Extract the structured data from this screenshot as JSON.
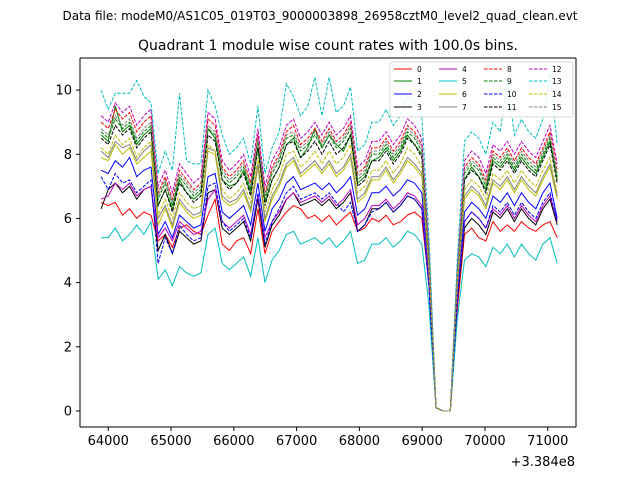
{
  "chart_data": {
    "type": "line",
    "suptitle": "Data file: modeM0/AS1C05_019T03_9000003898_26958cztM0_level2_quad_clean.evt",
    "title": "Quadrant 1 module wise count rates with 100.0s bins.",
    "xlabel": "",
    "ylabel": "",
    "x_offset_label": "+3.384e8",
    "x_tick_labels": [
      "64000",
      "65000",
      "66000",
      "67000",
      "68000",
      "69000",
      "70000",
      "71000"
    ],
    "y_tick_labels": [
      "0",
      "2",
      "4",
      "6",
      "8",
      "10"
    ],
    "xlim": [
      63550,
      71450
    ],
    "ylim": [
      -0.5,
      11.0
    ],
    "legend_position": "top-right",
    "series": [
      {
        "name": "0",
        "color": "#ff0000",
        "dash": "solid",
        "values": [
          6.5,
          6.4,
          6.5,
          6.1,
          6.3,
          6.0,
          6.2,
          6.1,
          5.3,
          5.5,
          5.1,
          5.7,
          5.8,
          5.6,
          5.5,
          6.1,
          6.6,
          5.2,
          5.0,
          5.3,
          5.4,
          4.9,
          6.3,
          4.9,
          5.6,
          5.9,
          6.2,
          6.4,
          6.3,
          6.0,
          6.1,
          5.9,
          6.1,
          5.8,
          6.0,
          6.2,
          5.6,
          5.7,
          6.0,
          5.9,
          6.1,
          5.8,
          5.9,
          6.1,
          6.2,
          6.0,
          4.0,
          0.1,
          0.0,
          0.0,
          3.2,
          5.5,
          5.7,
          5.4,
          5.3,
          5.9,
          5.6,
          5.8,
          5.6,
          5.9,
          5.7,
          5.6,
          5.8,
          5.9,
          5.4
        ]
      },
      {
        "name": "1",
        "color": "#008000",
        "dash": "solid",
        "values": [
          8.6,
          8.4,
          9.5,
          8.7,
          8.9,
          8.3,
          8.6,
          8.8,
          6.4,
          6.9,
          6.3,
          7.2,
          6.8,
          6.6,
          6.8,
          8.8,
          8.5,
          7.2,
          7.0,
          7.1,
          7.5,
          6.8,
          8.2,
          6.5,
          7.2,
          7.6,
          8.3,
          8.5,
          7.9,
          8.2,
          8.8,
          8.2,
          8.6,
          8.3,
          8.1,
          8.6,
          7.1,
          7.3,
          7.8,
          7.9,
          8.2,
          7.8,
          8.1,
          8.6,
          8.3,
          8.0,
          4.8,
          0.1,
          0.0,
          0.0,
          4.2,
          7.2,
          7.6,
          7.3,
          6.9,
          7.8,
          7.6,
          7.9,
          7.5,
          7.9,
          7.6,
          7.4,
          7.9,
          8.4,
          7.2
        ]
      },
      {
        "name": "2",
        "color": "#0000ff",
        "dash": "solid",
        "values": [
          7.5,
          7.4,
          7.8,
          7.6,
          7.9,
          7.3,
          7.5,
          7.6,
          5.5,
          5.9,
          5.4,
          6.1,
          5.9,
          5.7,
          5.8,
          7.3,
          7.4,
          6.2,
          6.0,
          6.2,
          6.4,
          5.8,
          7.1,
          5.6,
          6.3,
          6.6,
          7.1,
          7.3,
          6.9,
          7.0,
          7.1,
          6.9,
          7.1,
          6.8,
          7.0,
          7.3,
          6.1,
          6.3,
          6.8,
          6.8,
          7.0,
          6.7,
          6.9,
          7.2,
          7.1,
          6.8,
          4.2,
          0.1,
          0.0,
          0.0,
          3.7,
          6.2,
          6.5,
          6.3,
          6.0,
          6.7,
          6.5,
          6.8,
          6.4,
          6.8,
          6.5,
          6.3,
          6.8,
          7.1,
          6.0
        ]
      },
      {
        "name": "3",
        "color": "#000000",
        "dash": "solid",
        "values": [
          6.3,
          6.9,
          7.1,
          6.8,
          7.0,
          6.6,
          6.9,
          7.0,
          5.0,
          5.5,
          4.9,
          5.6,
          5.4,
          5.2,
          5.3,
          6.8,
          6.9,
          5.7,
          5.5,
          5.7,
          5.9,
          5.3,
          6.6,
          5.1,
          5.8,
          6.1,
          6.6,
          6.8,
          6.4,
          6.5,
          6.6,
          6.4,
          6.6,
          6.3,
          6.5,
          6.8,
          5.6,
          5.8,
          6.3,
          6.3,
          6.5,
          6.2,
          6.4,
          6.7,
          6.6,
          6.3,
          3.9,
          0.1,
          0.0,
          0.0,
          3.4,
          5.7,
          6.0,
          5.8,
          5.5,
          6.2,
          6.0,
          6.3,
          5.9,
          6.3,
          6.0,
          5.8,
          6.3,
          6.6,
          5.8
        ]
      },
      {
        "name": "4",
        "color": "#bf00bf",
        "dash": "solid",
        "values": [
          6.6,
          6.7,
          7.1,
          6.9,
          7.1,
          6.7,
          6.9,
          7.0,
          5.4,
          5.7,
          5.3,
          5.9,
          5.7,
          5.5,
          5.6,
          6.6,
          6.9,
          5.9,
          5.7,
          5.9,
          6.1,
          5.5,
          6.7,
          5.4,
          5.9,
          6.2,
          6.6,
          6.8,
          6.5,
          6.6,
          6.7,
          6.5,
          6.7,
          6.4,
          6.6,
          6.9,
          5.8,
          6.0,
          6.4,
          6.4,
          6.6,
          6.3,
          6.5,
          6.8,
          6.7,
          6.4,
          4.0,
          0.1,
          0.0,
          0.0,
          3.5,
          5.9,
          6.2,
          6.0,
          5.7,
          6.3,
          6.1,
          6.4,
          6.0,
          6.4,
          6.1,
          5.9,
          6.4,
          6.7,
          5.9
        ]
      },
      {
        "name": "5",
        "color": "#00bfbf",
        "dash": "solid",
        "values": [
          5.4,
          5.4,
          5.7,
          5.3,
          5.5,
          5.8,
          5.5,
          5.9,
          4.1,
          4.4,
          3.9,
          4.5,
          4.3,
          4.2,
          4.3,
          5.5,
          5.7,
          4.6,
          4.4,
          4.6,
          4.8,
          4.2,
          5.4,
          4.0,
          4.7,
          5.0,
          5.5,
          5.6,
          5.2,
          5.3,
          5.4,
          5.2,
          5.4,
          5.1,
          5.3,
          5.6,
          4.6,
          4.7,
          5.2,
          5.2,
          5.4,
          5.1,
          5.3,
          5.6,
          5.5,
          5.2,
          3.3,
          0.1,
          0.0,
          0.0,
          2.9,
          4.7,
          4.9,
          4.8,
          4.5,
          5.1,
          4.9,
          5.2,
          4.8,
          5.2,
          4.9,
          4.7,
          5.2,
          5.4,
          4.6
        ]
      },
      {
        "name": "6",
        "color": "#bfbf00",
        "dash": "solid",
        "values": [
          7.9,
          7.8,
          8.3,
          8.0,
          8.2,
          7.7,
          7.9,
          8.1,
          5.8,
          6.3,
          5.7,
          6.5,
          6.2,
          6.0,
          6.1,
          8.1,
          8.0,
          6.6,
          6.4,
          6.5,
          6.8,
          6.2,
          7.6,
          5.9,
          6.6,
          7.0,
          7.6,
          7.8,
          7.3,
          7.5,
          7.7,
          7.4,
          7.7,
          7.3,
          7.5,
          7.9,
          6.5,
          6.7,
          7.2,
          7.2,
          7.5,
          7.1,
          7.4,
          7.8,
          7.6,
          7.3,
          4.4,
          0.1,
          0.0,
          0.0,
          3.9,
          6.6,
          6.9,
          6.7,
          6.3,
          7.1,
          6.9,
          7.2,
          6.8,
          7.2,
          6.9,
          6.7,
          7.2,
          7.6,
          6.6
        ]
      },
      {
        "name": "7",
        "color": "#808080",
        "dash": "solid",
        "values": [
          8.1,
          7.9,
          8.4,
          8.2,
          8.3,
          7.8,
          8.1,
          8.3,
          6.0,
          6.4,
          5.8,
          6.6,
          6.3,
          6.1,
          6.2,
          8.2,
          8.1,
          6.7,
          6.5,
          6.6,
          6.9,
          6.3,
          7.7,
          6.0,
          6.7,
          7.1,
          7.7,
          7.9,
          7.4,
          7.6,
          7.8,
          7.5,
          7.8,
          7.4,
          7.6,
          8.0,
          6.6,
          6.8,
          7.3,
          7.3,
          7.6,
          7.2,
          7.5,
          7.9,
          7.7,
          7.4,
          4.5,
          0.1,
          0.0,
          0.0,
          4.0,
          6.7,
          7.0,
          6.8,
          6.4,
          7.2,
          7.0,
          7.3,
          6.9,
          7.3,
          7.0,
          6.8,
          7.3,
          7.7,
          6.7
        ]
      },
      {
        "name": "8",
        "color": "#ff0000",
        "dash": "dashed",
        "values": [
          9.0,
          8.8,
          9.4,
          9.1,
          9.3,
          8.7,
          9.0,
          9.2,
          6.8,
          7.3,
          6.6,
          7.5,
          7.2,
          6.9,
          7.1,
          9.1,
          8.9,
          7.6,
          7.3,
          7.5,
          7.8,
          7.1,
          8.6,
          6.8,
          7.6,
          8.0,
          8.7,
          8.9,
          8.3,
          8.5,
          8.8,
          8.4,
          8.8,
          8.4,
          8.6,
          9.0,
          7.4,
          7.6,
          8.2,
          8.2,
          8.5,
          8.1,
          8.4,
          8.9,
          8.7,
          8.3,
          5.0,
          0.1,
          0.0,
          0.0,
          4.4,
          7.6,
          7.9,
          7.7,
          7.2,
          8.1,
          7.9,
          8.2,
          7.8,
          8.2,
          7.9,
          7.7,
          8.2,
          8.7,
          7.5
        ]
      },
      {
        "name": "9",
        "color": "#008000",
        "dash": "dashed",
        "values": [
          8.7,
          8.5,
          9.1,
          8.8,
          9.0,
          8.4,
          8.7,
          8.9,
          6.6,
          7.1,
          6.4,
          7.3,
          7.0,
          6.7,
          6.9,
          8.8,
          8.6,
          7.4,
          7.1,
          7.3,
          7.6,
          6.9,
          8.4,
          6.6,
          7.4,
          7.8,
          8.5,
          8.6,
          8.1,
          8.3,
          8.6,
          8.2,
          8.6,
          8.2,
          8.4,
          8.8,
          7.2,
          7.4,
          8.0,
          8.0,
          8.3,
          7.9,
          8.2,
          8.7,
          8.5,
          8.1,
          4.9,
          0.1,
          0.0,
          0.0,
          4.3,
          7.4,
          7.7,
          7.5,
          7.0,
          7.9,
          7.7,
          8.0,
          7.6,
          8.0,
          7.7,
          7.5,
          8.0,
          8.5,
          7.3
        ]
      },
      {
        "name": "10",
        "color": "#0000ff",
        "dash": "dashed",
        "values": [
          7.3,
          6.9,
          7.4,
          7.1,
          7.2,
          6.8,
          7.0,
          7.2,
          4.6,
          5.4,
          4.9,
          5.8,
          5.5,
          5.3,
          5.4,
          7.0,
          7.1,
          5.9,
          5.6,
          5.8,
          6.0,
          5.4,
          6.8,
          5.2,
          5.9,
          6.3,
          6.8,
          7.0,
          6.6,
          6.7,
          6.8,
          6.6,
          6.8,
          6.5,
          6.2,
          6.5,
          5.6,
          5.8,
          6.2,
          6.3,
          6.5,
          6.2,
          6.4,
          6.7,
          6.6,
          6.3,
          3.9,
          0.1,
          0.0,
          0.0,
          3.5,
          5.9,
          6.2,
          6.0,
          5.7,
          6.4,
          6.2,
          6.5,
          6.1,
          6.5,
          6.2,
          6.0,
          6.5,
          6.8,
          5.9
        ]
      },
      {
        "name": "11",
        "color": "#000000",
        "dash": "dashed",
        "values": [
          8.5,
          8.3,
          8.9,
          8.6,
          8.8,
          8.2,
          8.5,
          8.7,
          6.4,
          6.9,
          6.2,
          7.1,
          6.8,
          6.5,
          6.7,
          8.6,
          8.4,
          7.2,
          6.9,
          7.1,
          7.4,
          6.7,
          8.2,
          6.4,
          7.2,
          7.6,
          8.3,
          8.4,
          7.9,
          8.1,
          8.4,
          8.0,
          8.4,
          8.0,
          8.2,
          8.6,
          7.0,
          7.2,
          7.8,
          7.8,
          8.1,
          7.7,
          8.0,
          8.5,
          8.3,
          7.9,
          4.8,
          0.1,
          0.0,
          0.0,
          4.2,
          7.2,
          7.5,
          7.3,
          6.8,
          7.7,
          7.5,
          7.8,
          7.4,
          7.8,
          7.5,
          7.3,
          7.8,
          8.3,
          7.1
        ]
      },
      {
        "name": "12",
        "color": "#bf00bf",
        "dash": "dashed",
        "values": [
          9.2,
          9.0,
          9.6,
          9.3,
          9.5,
          8.9,
          9.2,
          9.4,
          7.0,
          7.5,
          6.8,
          7.7,
          7.4,
          7.1,
          7.3,
          9.3,
          9.1,
          7.8,
          7.5,
          7.7,
          8.0,
          7.3,
          8.8,
          7.0,
          7.8,
          8.2,
          8.9,
          9.1,
          8.5,
          8.7,
          9.0,
          8.6,
          9.0,
          8.6,
          8.8,
          9.2,
          7.6,
          7.8,
          8.4,
          8.4,
          8.7,
          8.3,
          8.6,
          9.1,
          8.9,
          8.5,
          5.1,
          0.1,
          0.0,
          0.0,
          4.5,
          7.8,
          8.1,
          7.9,
          7.4,
          8.3,
          8.1,
          8.4,
          8.0,
          8.4,
          8.1,
          7.9,
          8.4,
          8.9,
          7.7
        ]
      },
      {
        "name": "13",
        "color": "#00bfbf",
        "dash": "dashed",
        "values": [
          10.0,
          9.4,
          9.9,
          9.9,
          9.9,
          10.3,
          9.8,
          9.6,
          7.4,
          8.1,
          7.5,
          9.9,
          7.8,
          7.7,
          7.7,
          10.0,
          9.5,
          8.6,
          8.0,
          8.2,
          8.5,
          7.7,
          9.5,
          7.4,
          8.2,
          8.7,
          10.2,
          9.8,
          9.2,
          9.5,
          10.4,
          9.2,
          10.4,
          9.3,
          9.5,
          10.1,
          8.1,
          8.3,
          9.0,
          9.0,
          9.4,
          8.9,
          9.2,
          9.8,
          9.6,
          9.2,
          5.5,
          0.1,
          0.0,
          0.0,
          4.8,
          8.4,
          8.7,
          8.5,
          8.0,
          9.0,
          8.7,
          10.3,
          8.6,
          9.1,
          8.7,
          8.5,
          9.1,
          10.5,
          8.3
        ]
      },
      {
        "name": "14",
        "color": "#bfbf00",
        "dash": "dashed",
        "values": [
          8.2,
          8.0,
          8.6,
          8.3,
          8.5,
          7.9,
          8.2,
          8.4,
          6.1,
          6.6,
          6.0,
          6.8,
          6.5,
          6.3,
          6.4,
          8.3,
          8.1,
          6.9,
          6.6,
          6.8,
          7.1,
          6.5,
          7.9,
          6.2,
          6.9,
          7.3,
          8.0,
          8.1,
          7.6,
          7.8,
          8.1,
          7.7,
          8.1,
          7.7,
          7.9,
          8.3,
          6.8,
          7.0,
          7.5,
          7.5,
          7.8,
          7.4,
          7.7,
          8.2,
          8.0,
          7.6,
          4.6,
          0.1,
          0.0,
          0.0,
          4.1,
          6.9,
          7.2,
          7.0,
          6.6,
          7.4,
          7.2,
          7.5,
          7.1,
          7.5,
          7.2,
          7.0,
          7.5,
          7.9,
          6.8
        ]
      },
      {
        "name": "15",
        "color": "#808080",
        "dash": "dashed",
        "values": [
          8.8,
          8.6,
          9.2,
          8.9,
          9.1,
          8.5,
          8.8,
          9.0,
          6.7,
          7.2,
          6.5,
          7.4,
          7.1,
          6.8,
          7.0,
          8.9,
          8.7,
          7.5,
          7.2,
          7.4,
          7.7,
          7.0,
          8.5,
          6.7,
          7.5,
          7.9,
          8.6,
          8.7,
          8.2,
          8.4,
          8.7,
          8.3,
          8.7,
          8.3,
          8.5,
          8.9,
          7.3,
          7.5,
          8.1,
          8.1,
          8.4,
          8.0,
          8.3,
          8.8,
          8.6,
          8.2,
          4.9,
          0.1,
          0.0,
          0.0,
          4.3,
          7.5,
          7.8,
          7.6,
          7.1,
          8.0,
          7.8,
          8.1,
          7.7,
          8.1,
          7.8,
          7.6,
          8.1,
          8.6,
          7.4
        ]
      }
    ],
    "x_start": 63886,
    "x_step": 113.5
  }
}
